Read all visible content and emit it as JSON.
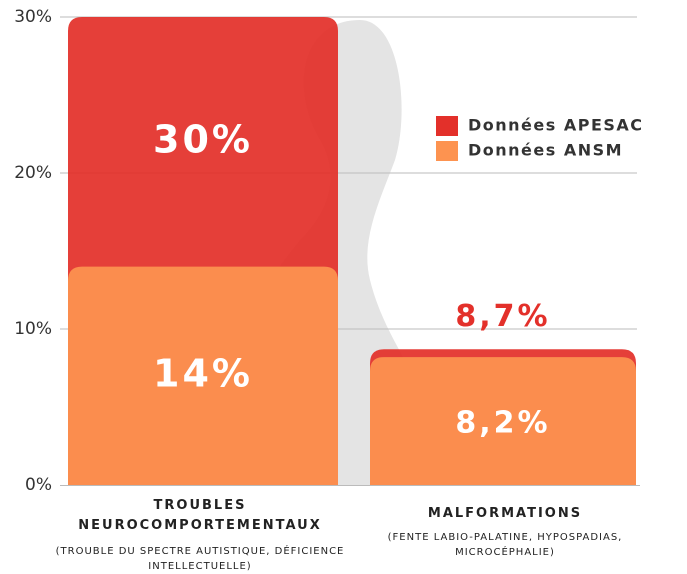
{
  "chart_data": {
    "type": "bar",
    "categories": [
      "TROUBLES NEUROCOMPORTEMENTAUX",
      "MALFORMATIONS"
    ],
    "category_notes": [
      "(TROUBLE DU SPECTRE AUTISTIQUE, DÉFICIENCE INTELLECTUELLE)",
      "(FENTE LABIO-PALATINE, HYPOSPADIAS, MICROCÉPHALIE)"
    ],
    "series": [
      {
        "name": "Données APESAC",
        "color": "#e3302a",
        "values": [
          30,
          8.7
        ],
        "value_labels": [
          "30%",
          "8,7%"
        ]
      },
      {
        "name": "Données ANSM",
        "color": "#fd9350",
        "values": [
          14,
          8.2
        ],
        "value_labels": [
          "14%",
          "8,2%"
        ]
      }
    ],
    "ylim": [
      0,
      30
    ],
    "yticks": [
      {
        "value": 0,
        "label": "0%"
      },
      {
        "value": 10,
        "label": "10%"
      },
      {
        "value": 20,
        "label": "20%"
      },
      {
        "value": 30,
        "label": "30%"
      }
    ],
    "grid": true
  }
}
